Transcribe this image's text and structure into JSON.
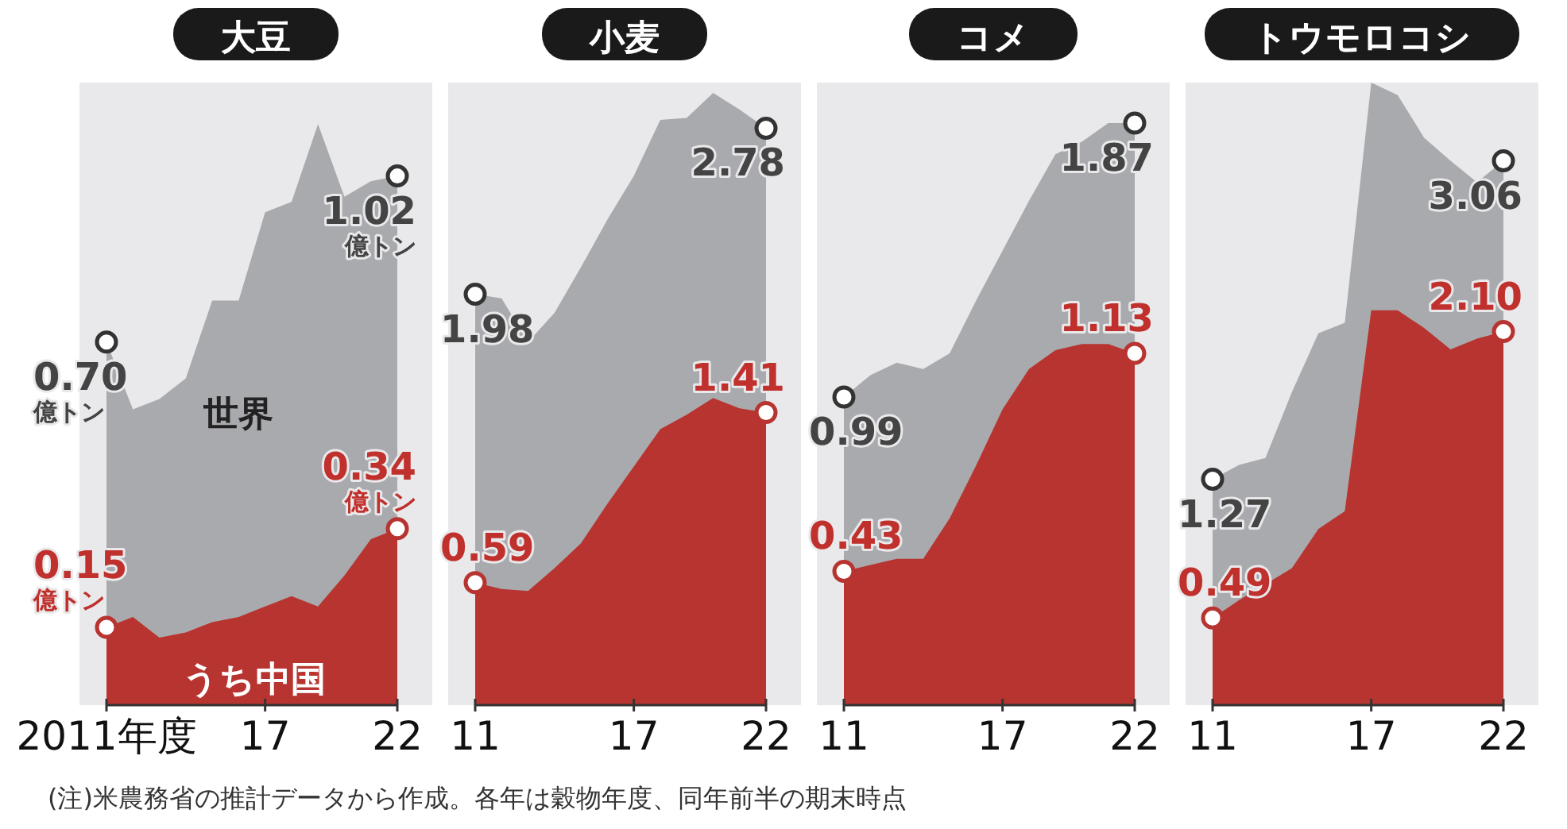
{
  "chart_data": [
    {
      "type": "area",
      "title": "大豆",
      "x": [
        2011,
        2012,
        2013,
        2014,
        2015,
        2016,
        2017,
        2018,
        2019,
        2020,
        2021,
        2022
      ],
      "xlim": [
        2011,
        2022
      ],
      "xticks": [
        {
          "value": 2011,
          "label": "2011年度"
        },
        {
          "value": 2017,
          "label": "17"
        },
        {
          "value": 2022,
          "label": "22"
        }
      ],
      "ylim": [
        0,
        1.2
      ],
      "tick_labels": "x",
      "series": [
        {
          "name": "世界",
          "color": "#a9aaad",
          "values": [
            0.7,
            0.57,
            0.59,
            0.63,
            0.78,
            0.78,
            0.95,
            0.97,
            1.12,
            0.98,
            1.01,
            1.02
          ],
          "value_labels": [
            "0.70\n億トン",
            null,
            null,
            null,
            null,
            null,
            null,
            null,
            null,
            null,
            null,
            "1.02\n億トン"
          ]
        },
        {
          "name": "うち中国",
          "color": "#b83430",
          "values": [
            0.15,
            0.17,
            0.13,
            0.14,
            0.16,
            0.17,
            0.19,
            0.21,
            0.19,
            0.25,
            0.32,
            0.34
          ],
          "value_labels": [
            "0.15\n億トン",
            null,
            null,
            null,
            null,
            null,
            null,
            null,
            null,
            null,
            null,
            "0.34\n億トン"
          ]
        }
      ],
      "annotations": [
        "(注)米農務省の推計データから作成。各年は穀物年度、同年前半の期末時点"
      ]
    },
    {
      "type": "area",
      "title": "小麦",
      "x": [
        2011,
        2012,
        2013,
        2014,
        2015,
        2016,
        2017,
        2018,
        2019,
        2020,
        2021,
        2022
      ],
      "xlim": [
        2011,
        2022
      ],
      "xticks": [
        {
          "value": 2011,
          "label": "11"
        },
        {
          "value": 2017,
          "label": "17"
        },
        {
          "value": 2022,
          "label": "22"
        }
      ],
      "ylim": [
        0,
        3.0
      ],
      "tick_labels": "x",
      "series": [
        {
          "color": "#a9aaad",
          "values": [
            1.98,
            1.96,
            1.75,
            1.89,
            2.11,
            2.34,
            2.55,
            2.82,
            2.83,
            2.95,
            2.87,
            2.78
          ],
          "value_labels": [
            "1.98",
            null,
            null,
            null,
            null,
            null,
            null,
            null,
            null,
            null,
            null,
            "2.78"
          ]
        },
        {
          "color": "#b83430",
          "values": [
            0.59,
            0.56,
            0.55,
            0.66,
            0.78,
            0.97,
            1.15,
            1.33,
            1.4,
            1.48,
            1.43,
            1.41
          ],
          "value_labels": [
            "0.59",
            null,
            null,
            null,
            null,
            null,
            null,
            null,
            null,
            null,
            null,
            "1.41"
          ]
        }
      ]
    },
    {
      "type": "area",
      "title": "コメ",
      "x": [
        2011,
        2012,
        2013,
        2014,
        2015,
        2016,
        2017,
        2018,
        2019,
        2020,
        2021,
        2022
      ],
      "xlim": [
        2011,
        2022
      ],
      "xticks": [
        {
          "value": 2011,
          "label": "11"
        },
        {
          "value": 2017,
          "label": "17"
        },
        {
          "value": 2022,
          "label": "22"
        }
      ],
      "ylim": [
        0,
        2.0
      ],
      "tick_labels": "x",
      "series": [
        {
          "color": "#a9aaad",
          "values": [
            0.99,
            1.06,
            1.1,
            1.08,
            1.13,
            1.3,
            1.46,
            1.62,
            1.77,
            1.81,
            1.87,
            1.87
          ],
          "value_labels": [
            "0.99",
            null,
            null,
            null,
            null,
            null,
            null,
            null,
            null,
            null,
            null,
            "1.87"
          ]
        },
        {
          "color": "#b83430",
          "values": [
            0.43,
            0.45,
            0.47,
            0.47,
            0.6,
            0.77,
            0.95,
            1.08,
            1.14,
            1.16,
            1.16,
            1.13
          ],
          "value_labels": [
            "0.43",
            null,
            null,
            null,
            null,
            null,
            null,
            null,
            null,
            null,
            null,
            "1.13"
          ]
        }
      ]
    },
    {
      "type": "area",
      "title": "トウモロコシ",
      "x": [
        2011,
        2012,
        2013,
        2014,
        2015,
        2016,
        2017,
        2018,
        2019,
        2020,
        2021,
        2022
      ],
      "xlim": [
        2011,
        2022
      ],
      "xticks": [
        {
          "value": 2011,
          "label": "11"
        },
        {
          "value": 2017,
          "label": "17"
        },
        {
          "value": 2022,
          "label": "22"
        }
      ],
      "ylim": [
        0,
        3.5
      ],
      "tick_labels": "x",
      "series": [
        {
          "color": "#a9aaad",
          "values": [
            1.27,
            1.35,
            1.39,
            1.76,
            2.09,
            2.15,
            3.5,
            3.43,
            3.19,
            3.06,
            2.94,
            3.06
          ],
          "value_labels": [
            "1.27",
            null,
            null,
            null,
            null,
            null,
            null,
            null,
            null,
            null,
            null,
            "3.06"
          ]
        },
        {
          "color": "#b83430",
          "values": [
            0.49,
            0.59,
            0.68,
            0.77,
            0.99,
            1.09,
            2.22,
            2.22,
            2.12,
            2.0,
            2.06,
            2.1
          ],
          "value_labels": [
            "0.49",
            null,
            null,
            null,
            null,
            null,
            null,
            null,
            null,
            null,
            null,
            "2.10"
          ]
        }
      ]
    }
  ]
}
